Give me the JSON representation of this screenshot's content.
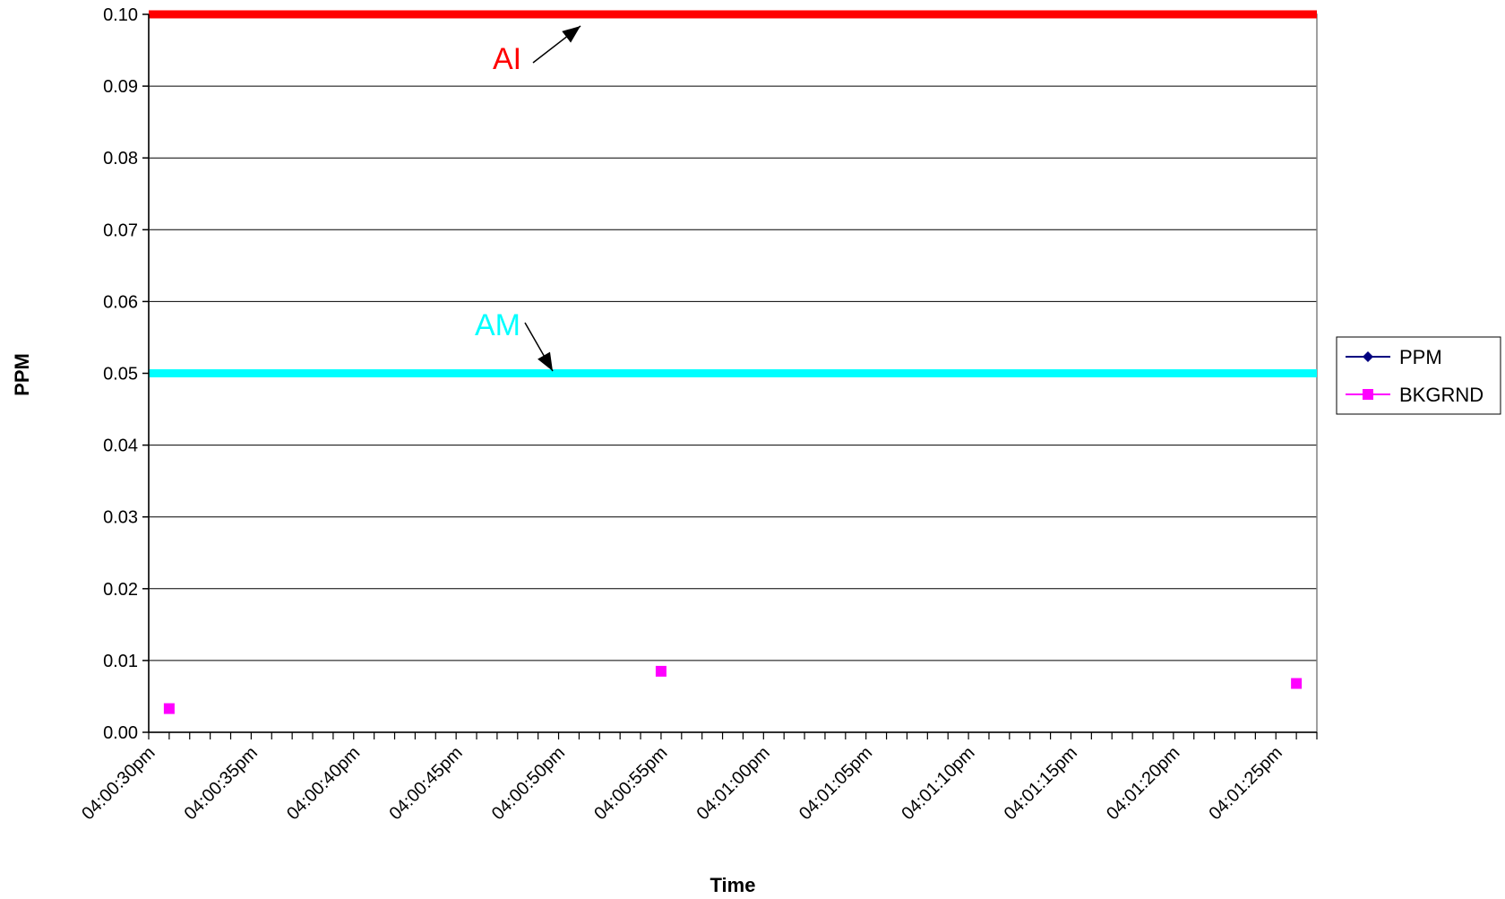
{
  "chart_data": {
    "type": "scatter",
    "title": "",
    "xlabel": "Time",
    "ylabel": "PPM",
    "ylim": [
      0,
      0.1
    ],
    "y_ticks": [
      "0.00",
      "0.01",
      "0.02",
      "0.03",
      "0.04",
      "0.05",
      "0.06",
      "0.07",
      "0.08",
      "0.09",
      "0.10"
    ],
    "x_range_seconds": [
      "04:00:30pm",
      "04:01:27pm"
    ],
    "x_ticks": [
      {
        "label": "04:00:30pm",
        "t": "16:00:30"
      },
      {
        "label": "04:00:35pm",
        "t": "16:00:35"
      },
      {
        "label": "04:00:40pm",
        "t": "16:00:40"
      },
      {
        "label": "04:00:45pm",
        "t": "16:00:45"
      },
      {
        "label": "04:00:50pm",
        "t": "16:00:50"
      },
      {
        "label": "04:00:55pm",
        "t": "16:00:55"
      },
      {
        "label": "04:01:00pm",
        "t": "16:01:00"
      },
      {
        "label": "04:01:05pm",
        "t": "16:01:05"
      },
      {
        "label": "04:01:10pm",
        "t": "16:01:10"
      },
      {
        "label": "04:01:15pm",
        "t": "16:01:15"
      },
      {
        "label": "04:01:20pm",
        "t": "16:01:20"
      },
      {
        "label": "04:01:25pm",
        "t": "16:01:25"
      }
    ],
    "grid": "horizontal",
    "legend_position": "right",
    "series": [
      {
        "name": "PPM",
        "color": "#000080",
        "marker": "diamond",
        "points": []
      },
      {
        "name": "BKGRND",
        "color": "#FF00FF",
        "marker": "square",
        "points": [
          {
            "t": "16:00:31",
            "y": 0.0033
          },
          {
            "t": "16:00:55",
            "y": 0.0085
          },
          {
            "t": "16:01:26",
            "y": 0.0068
          }
        ]
      }
    ],
    "reference_lines": [
      {
        "label": "AI",
        "y": 0.1,
        "color": "#FF0000"
      },
      {
        "label": "AM",
        "y": 0.05,
        "color": "#00FFFF"
      }
    ]
  }
}
